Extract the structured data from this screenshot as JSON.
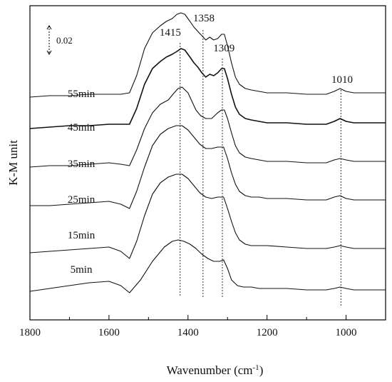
{
  "chart_data": {
    "type": "line",
    "title": "",
    "xlabel": "Wavenumber (cm",
    "xlabel_superscript": "-1",
    "xlabel_close": ")",
    "ylabel": "K-M unit",
    "x_reversed": true,
    "xlim": [
      1800,
      900
    ],
    "ylim": [
      -0.02,
      0.2
    ],
    "x_ticks": [
      "1800",
      "1600",
      "1400",
      "1200",
      "1000"
    ],
    "y_ticks_shown": false,
    "grid": false,
    "legend": "none",
    "scale_bar": {
      "label": "0.02",
      "value": 0.02
    },
    "peak_markers": [
      {
        "label": "1415",
        "x": 1420
      },
      {
        "label": "1358",
        "x": 1362
      },
      {
        "label": "1309",
        "x": 1313
      },
      {
        "label": "1010",
        "x": 1013
      }
    ],
    "series": [
      {
        "name": "5min",
        "x": [
          1800,
          1750,
          1700,
          1650,
          1600,
          1570,
          1548,
          1520,
          1490,
          1460,
          1440,
          1425,
          1410,
          1395,
          1380,
          1365,
          1350,
          1335,
          1320,
          1310,
          1300,
          1290,
          1275,
          1260,
          1240,
          1220,
          1200,
          1150,
          1100,
          1050,
          1030,
          1015,
          1000,
          980,
          950,
          920,
          900
        ],
        "values": [
          0.0,
          0.002,
          0.004,
          0.006,
          0.007,
          0.004,
          -0.001,
          0.008,
          0.021,
          0.031,
          0.035,
          0.036,
          0.035,
          0.033,
          0.03,
          0.026,
          0.023,
          0.021,
          0.021,
          0.022,
          0.016,
          0.008,
          0.004,
          0.003,
          0.003,
          0.002,
          0.002,
          0.002,
          0.001,
          0.001,
          0.002,
          0.003,
          0.002,
          0.001,
          0.001,
          0.001,
          0.001
        ]
      },
      {
        "name": "15min",
        "x": [
          1800,
          1750,
          1700,
          1650,
          1600,
          1570,
          1548,
          1530,
          1510,
          1490,
          1470,
          1450,
          1430,
          1415,
          1400,
          1385,
          1370,
          1355,
          1340,
          1325,
          1310,
          1300,
          1290,
          1280,
          1270,
          1255,
          1240,
          1220,
          1200,
          1150,
          1100,
          1050,
          1030,
          1015,
          1000,
          980,
          950,
          920,
          900
        ],
        "values": [
          0.027,
          0.028,
          0.029,
          0.03,
          0.031,
          0.028,
          0.023,
          0.035,
          0.053,
          0.068,
          0.076,
          0.08,
          0.082,
          0.082,
          0.079,
          0.074,
          0.069,
          0.066,
          0.065,
          0.066,
          0.066,
          0.058,
          0.049,
          0.041,
          0.036,
          0.033,
          0.032,
          0.032,
          0.032,
          0.031,
          0.03,
          0.03,
          0.031,
          0.032,
          0.031,
          0.03,
          0.03,
          0.03,
          0.03
        ]
      },
      {
        "name": "25min",
        "x": [
          1800,
          1750,
          1700,
          1650,
          1600,
          1570,
          1548,
          1530,
          1510,
          1490,
          1470,
          1450,
          1430,
          1415,
          1400,
          1385,
          1370,
          1355,
          1340,
          1325,
          1310,
          1300,
          1290,
          1280,
          1270,
          1255,
          1240,
          1220,
          1200,
          1150,
          1100,
          1050,
          1030,
          1015,
          1000,
          980,
          950,
          920,
          900
        ],
        "values": [
          0.06,
          0.06,
          0.061,
          0.062,
          0.063,
          0.061,
          0.058,
          0.07,
          0.087,
          0.102,
          0.11,
          0.114,
          0.116,
          0.116,
          0.113,
          0.108,
          0.103,
          0.1,
          0.1,
          0.101,
          0.101,
          0.093,
          0.083,
          0.075,
          0.07,
          0.067,
          0.066,
          0.066,
          0.065,
          0.065,
          0.064,
          0.064,
          0.066,
          0.067,
          0.065,
          0.064,
          0.064,
          0.064,
          0.064
        ]
      },
      {
        "name": "35min",
        "x": [
          1800,
          1750,
          1700,
          1650,
          1600,
          1570,
          1548,
          1530,
          1510,
          1490,
          1470,
          1450,
          1435,
          1425,
          1415,
          1400,
          1390,
          1380,
          1368,
          1355,
          1340,
          1325,
          1315,
          1308,
          1300,
          1290,
          1280,
          1270,
          1255,
          1240,
          1220,
          1200,
          1150,
          1100,
          1050,
          1030,
          1015,
          1000,
          980,
          950,
          920,
          900
        ],
        "values": [
          0.087,
          0.088,
          0.088,
          0.089,
          0.09,
          0.089,
          0.088,
          0.099,
          0.114,
          0.125,
          0.131,
          0.134,
          0.139,
          0.142,
          0.143,
          0.139,
          0.133,
          0.127,
          0.123,
          0.121,
          0.121,
          0.125,
          0.127,
          0.127,
          0.121,
          0.111,
          0.102,
          0.097,
          0.094,
          0.093,
          0.092,
          0.091,
          0.091,
          0.09,
          0.09,
          0.092,
          0.093,
          0.092,
          0.091,
          0.091,
          0.091,
          0.091
        ]
      },
      {
        "name": "45min",
        "x": [
          1800,
          1750,
          1700,
          1650,
          1600,
          1570,
          1548,
          1530,
          1510,
          1490,
          1470,
          1455,
          1440,
          1428,
          1418,
          1408,
          1395,
          1385,
          1375,
          1365,
          1355,
          1345,
          1335,
          1325,
          1315,
          1308,
          1300,
          1290,
          1280,
          1270,
          1255,
          1240,
          1220,
          1200,
          1150,
          1100,
          1050,
          1030,
          1015,
          1000,
          980,
          950,
          920,
          900
        ],
        "values": [
          0.114,
          0.115,
          0.116,
          0.116,
          0.117,
          0.117,
          0.117,
          0.128,
          0.145,
          0.156,
          0.161,
          0.164,
          0.166,
          0.168,
          0.17,
          0.169,
          0.164,
          0.16,
          0.157,
          0.153,
          0.15,
          0.152,
          0.151,
          0.153,
          0.156,
          0.156,
          0.149,
          0.138,
          0.129,
          0.124,
          0.121,
          0.12,
          0.119,
          0.118,
          0.118,
          0.117,
          0.117,
          0.119,
          0.121,
          0.119,
          0.118,
          0.118,
          0.118,
          0.118
        ]
      },
      {
        "name": "55min",
        "x": [
          1800,
          1750,
          1700,
          1650,
          1600,
          1570,
          1548,
          1530,
          1510,
          1490,
          1470,
          1455,
          1440,
          1428,
          1418,
          1408,
          1395,
          1385,
          1375,
          1365,
          1355,
          1345,
          1335,
          1325,
          1315,
          1308,
          1300,
          1290,
          1280,
          1270,
          1255,
          1240,
          1220,
          1200,
          1150,
          1100,
          1050,
          1030,
          1015,
          1000,
          980,
          950,
          920,
          900
        ],
        "values": [
          0.136,
          0.137,
          0.137,
          0.138,
          0.138,
          0.138,
          0.139,
          0.151,
          0.17,
          0.181,
          0.186,
          0.189,
          0.191,
          0.194,
          0.195,
          0.194,
          0.189,
          0.185,
          0.182,
          0.179,
          0.176,
          0.178,
          0.176,
          0.177,
          0.18,
          0.18,
          0.172,
          0.16,
          0.15,
          0.145,
          0.142,
          0.141,
          0.14,
          0.139,
          0.139,
          0.138,
          0.138,
          0.14,
          0.142,
          0.14,
          0.139,
          0.139,
          0.139,
          0.139
        ]
      }
    ]
  }
}
